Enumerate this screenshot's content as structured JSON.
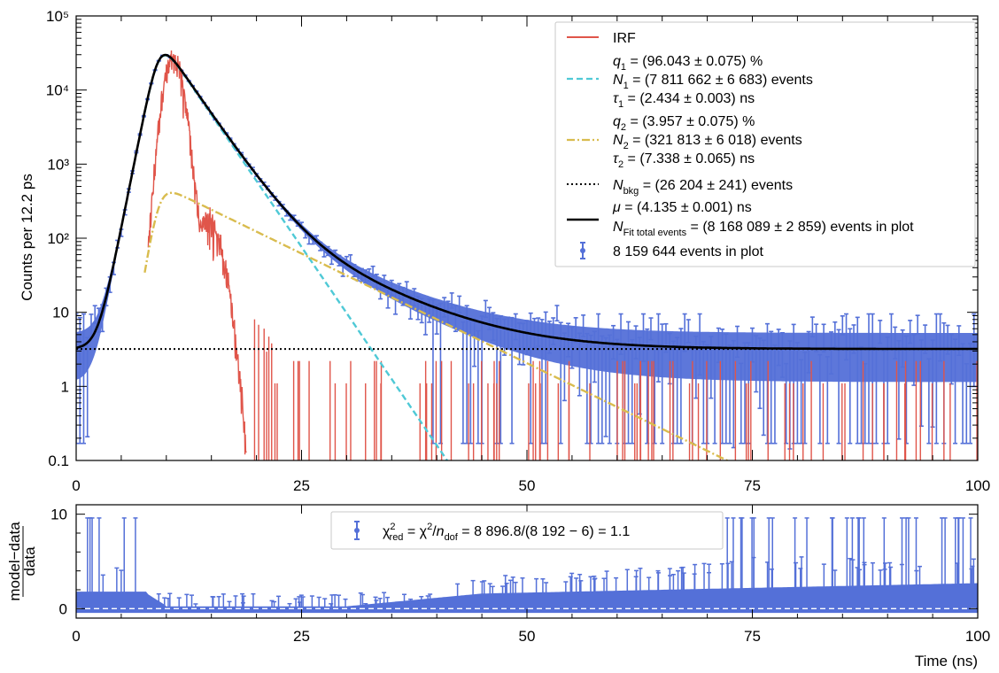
{
  "chart_data": [
    {
      "type": "line",
      "yscale": "log",
      "ylabel": "Counts per 12.2 ps",
      "xlim": [
        0,
        100
      ],
      "ylim": [
        0.1,
        100000
      ],
      "x_ticks": [
        "0",
        "25",
        "50",
        "75",
        "100"
      ],
      "y_ticks": [
        {
          "value": 0.1,
          "label": "0.1"
        },
        {
          "value": 1,
          "label": "1"
        },
        {
          "value": 10,
          "label": "10"
        },
        {
          "value": 100,
          "label": "10²"
        },
        {
          "value": 1000,
          "label": "10³"
        },
        {
          "value": 10000,
          "label": "10⁴"
        },
        {
          "value": 100000,
          "label": "10⁵"
        }
      ],
      "model": {
        "rise_center": 9.2,
        "rise_width": 0.55,
        "tau1": 2.434,
        "tau2": 7.338,
        "A1": 26000,
        "A2": 430,
        "background": 3.2,
        "peak_x": 10.8
      },
      "series": [
        {
          "name": "IRF",
          "color": "#e0554a",
          "style": "solid"
        },
        {
          "name": "q1 = (96.043 ± 0.075) %  N1 = (7 811 662 ± 6 683) events  τ1 = (2.434 ± 0.003) ns",
          "color": "#4fc9d6",
          "style": "dashed"
        },
        {
          "name": "q2 = (3.957 ± 0.075) %  N2 = (321 813 ± 6 018) events  τ2 = (7.338 ± 0.065) ns",
          "color": "#d9bc4e",
          "style": "dashdot"
        },
        {
          "name": "Nbkg = (26 204 ± 241) events",
          "color": "#000000",
          "style": "dotted"
        },
        {
          "name": "μ = (4.135 ± 0.001) ns  NFit total events = (8 168 089 ± 2 859) events in plot",
          "color": "#000000",
          "style": "solid"
        },
        {
          "name": "8 159 644 events in plot",
          "color": "#5470d8",
          "style": "errorbar"
        }
      ],
      "legend_placement": "top-right"
    },
    {
      "type": "scatter",
      "ylabel": "model−data / data",
      "xlabel": "Time (ns)",
      "xlim": [
        0,
        100
      ],
      "ylim": [
        -1,
        11
      ],
      "x_ticks": [
        "0",
        "25",
        "50",
        "75",
        "100"
      ],
      "y_ticks": [
        "0",
        "10"
      ],
      "series": [
        {
          "name": "χ²red = χ²/ndof = 8 896.8/(8 192 − 6) = 1.1",
          "color": "#5470d8",
          "style": "errorbar"
        }
      ],
      "legend_placement": "top-center"
    }
  ],
  "legend": {
    "irf": "IRF",
    "q1": {
      "sym": "q",
      "sub": "1",
      "rest": " = (96.043 ± 0.075) %"
    },
    "n1": {
      "sym": "N",
      "sub": "1",
      "rest": " = (7 811 662 ± 6 683) events"
    },
    "tau1": {
      "sym": "τ",
      "sub": "1",
      "rest": " = (2.434 ± 0.003) ns"
    },
    "q2": {
      "sym": "q",
      "sub": "2",
      "rest": " = (3.957 ± 0.075) %"
    },
    "n2": {
      "sym": "N",
      "sub": "2",
      "rest": " = (321 813 ± 6 018) events"
    },
    "tau2": {
      "sym": "τ",
      "sub": "2",
      "rest": " = (7.338 ± 0.065) ns"
    },
    "nbkg": {
      "sym": "N",
      "sub": "bkg",
      "rest": " = (26 204 ± 241) events"
    },
    "mu": {
      "sym": "μ",
      "rest": " = (4.135 ± 0.001) ns"
    },
    "nfit": {
      "sym": "N",
      "sub": "Fit total events",
      "rest": " = (8 168 089 ± 2 859) events in plot"
    },
    "data": "8 159 644 events in plot"
  },
  "residual_legend": {
    "chi": "χ",
    "sup": "2",
    "sub": "red",
    "eq1": " = χ",
    "sup2": "2",
    "slash": "/",
    "n": "n",
    "dof": "dof",
    "rest": " = 8 896.8/(8 192 − 6) = 1.1"
  },
  "ylabel_bottom": {
    "num": "model−data",
    "den": "data"
  },
  "colors": {
    "data": "#5470d8",
    "irf": "#e0554a",
    "comp1": "#4fc9d6",
    "comp2": "#d9bc4e",
    "fit": "#000000"
  }
}
